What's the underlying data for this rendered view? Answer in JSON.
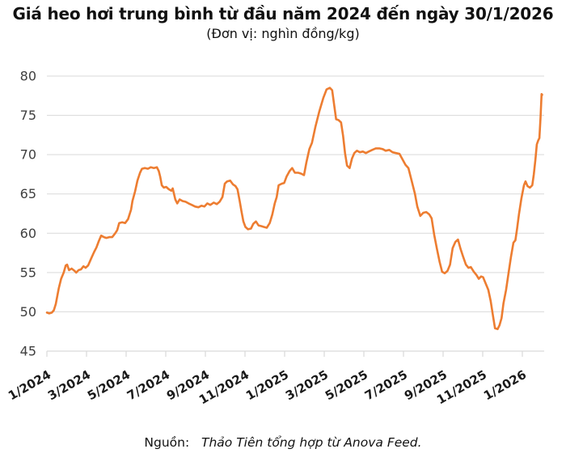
{
  "header": {
    "title": "Giá heo hơi trung bình từ đầu năm 2024 đến ngày 30/1/2026",
    "subtitle": "(Đơn vị: nghìn đồng/kg)"
  },
  "footer": {
    "source_label": "Nguồn:",
    "source_text": "Thảo Tiên tổng hợp từ Anova Feed."
  },
  "chart_data": {
    "type": "line",
    "title": "Giá heo hơi trung bình từ đầu năm 2024 đến ngày 30/1/2026",
    "unit": "nghìn đồng/kg",
    "grid": "horizontal",
    "legend": "none",
    "line_color": "#ED7D31",
    "grid_color": "#D9D9D9",
    "axis_color": "#D9D9D9",
    "ytick_color": "#3F3F3F",
    "xtick_color": "#1A1A1A",
    "ylim": [
      45,
      80
    ],
    "y_ticks": [
      45,
      50,
      55,
      60,
      65,
      70,
      75,
      80
    ],
    "x_tick_labels": [
      "1/2024",
      "3/2024",
      "5/2024",
      "7/2024",
      "9/2024",
      "11/2024",
      "1/2025",
      "3/2025",
      "5/2025",
      "7/2025",
      "9/2025",
      "11/2025",
      "1/2026"
    ],
    "x_tick_month_positions": [
      0,
      2,
      4,
      6,
      8,
      10,
      12,
      14,
      16,
      18,
      20,
      22,
      24
    ],
    "xlim_months": [
      0,
      25.1
    ],
    "series": [
      {
        "name": "Giá heo hơi trung bình (nghìn đồng/kg)",
        "x_unit": "months since 1/2024",
        "points": [
          [
            0.0,
            49.9
          ],
          [
            0.12,
            49.8
          ],
          [
            0.25,
            49.9
          ],
          [
            0.35,
            50.2
          ],
          [
            0.45,
            51.0
          ],
          [
            0.6,
            53.0
          ],
          [
            0.72,
            54.2
          ],
          [
            0.85,
            55.0
          ],
          [
            0.95,
            55.9
          ],
          [
            1.02,
            56.0
          ],
          [
            1.12,
            55.3
          ],
          [
            1.25,
            55.5
          ],
          [
            1.4,
            55.2
          ],
          [
            1.48,
            55.0
          ],
          [
            1.6,
            55.3
          ],
          [
            1.72,
            55.4
          ],
          [
            1.85,
            55.8
          ],
          [
            1.95,
            55.6
          ],
          [
            2.08,
            55.9
          ],
          [
            2.22,
            56.7
          ],
          [
            2.38,
            57.6
          ],
          [
            2.5,
            58.2
          ],
          [
            2.62,
            59.0
          ],
          [
            2.74,
            59.7
          ],
          [
            2.88,
            59.5
          ],
          [
            3.0,
            59.4
          ],
          [
            3.15,
            59.5
          ],
          [
            3.3,
            59.5
          ],
          [
            3.45,
            60.0
          ],
          [
            3.55,
            60.4
          ],
          [
            3.65,
            61.3
          ],
          [
            3.8,
            61.4
          ],
          [
            3.95,
            61.3
          ],
          [
            4.1,
            61.8
          ],
          [
            4.25,
            63.0
          ],
          [
            4.32,
            64.1
          ],
          [
            4.45,
            65.3
          ],
          [
            4.57,
            66.7
          ],
          [
            4.7,
            67.7
          ],
          [
            4.8,
            68.2
          ],
          [
            4.95,
            68.3
          ],
          [
            5.1,
            68.2
          ],
          [
            5.25,
            68.4
          ],
          [
            5.4,
            68.3
          ],
          [
            5.55,
            68.4
          ],
          [
            5.65,
            67.9
          ],
          [
            5.72,
            67.2
          ],
          [
            5.8,
            66.1
          ],
          [
            5.9,
            65.8
          ],
          [
            6.02,
            65.9
          ],
          [
            6.15,
            65.6
          ],
          [
            6.28,
            65.4
          ],
          [
            6.35,
            65.7
          ],
          [
            6.48,
            64.3
          ],
          [
            6.58,
            63.8
          ],
          [
            6.7,
            64.3
          ],
          [
            6.85,
            64.1
          ],
          [
            7.0,
            64.0
          ],
          [
            7.15,
            63.8
          ],
          [
            7.32,
            63.6
          ],
          [
            7.48,
            63.4
          ],
          [
            7.65,
            63.3
          ],
          [
            7.8,
            63.5
          ],
          [
            7.95,
            63.4
          ],
          [
            8.1,
            63.8
          ],
          [
            8.25,
            63.6
          ],
          [
            8.42,
            63.9
          ],
          [
            8.58,
            63.7
          ],
          [
            8.72,
            64.0
          ],
          [
            8.86,
            64.6
          ],
          [
            8.98,
            66.3
          ],
          [
            9.1,
            66.6
          ],
          [
            9.25,
            66.7
          ],
          [
            9.4,
            66.2
          ],
          [
            9.52,
            66.0
          ],
          [
            9.62,
            65.6
          ],
          [
            9.74,
            64.0
          ],
          [
            9.83,
            62.7
          ],
          [
            9.92,
            61.5
          ],
          [
            10.02,
            60.8
          ],
          [
            10.15,
            60.5
          ],
          [
            10.3,
            60.6
          ],
          [
            10.42,
            61.2
          ],
          [
            10.55,
            61.5
          ],
          [
            10.68,
            61.0
          ],
          [
            10.82,
            60.9
          ],
          [
            10.95,
            60.8
          ],
          [
            11.1,
            60.7
          ],
          [
            11.25,
            61.3
          ],
          [
            11.38,
            62.4
          ],
          [
            11.5,
            63.8
          ],
          [
            11.6,
            64.6
          ],
          [
            11.7,
            66.1
          ],
          [
            11.85,
            66.3
          ],
          [
            11.98,
            66.4
          ],
          [
            12.1,
            67.2
          ],
          [
            12.25,
            67.9
          ],
          [
            12.38,
            68.3
          ],
          [
            12.52,
            67.7
          ],
          [
            12.68,
            67.7
          ],
          [
            12.82,
            67.6
          ],
          [
            12.98,
            67.4
          ],
          [
            13.1,
            69.0
          ],
          [
            13.25,
            70.7
          ],
          [
            13.38,
            71.5
          ],
          [
            13.55,
            73.5
          ],
          [
            13.75,
            75.5
          ],
          [
            13.95,
            77.2
          ],
          [
            14.12,
            78.3
          ],
          [
            14.28,
            78.5
          ],
          [
            14.4,
            78.2
          ],
          [
            14.5,
            76.3
          ],
          [
            14.6,
            74.5
          ],
          [
            14.72,
            74.4
          ],
          [
            14.85,
            74.1
          ],
          [
            14.95,
            72.4
          ],
          [
            15.05,
            70.2
          ],
          [
            15.15,
            68.6
          ],
          [
            15.28,
            68.3
          ],
          [
            15.4,
            69.5
          ],
          [
            15.52,
            70.2
          ],
          [
            15.65,
            70.5
          ],
          [
            15.8,
            70.3
          ],
          [
            15.95,
            70.4
          ],
          [
            16.1,
            70.2
          ],
          [
            16.25,
            70.4
          ],
          [
            16.42,
            70.6
          ],
          [
            16.6,
            70.8
          ],
          [
            16.78,
            70.8
          ],
          [
            16.95,
            70.7
          ],
          [
            17.1,
            70.5
          ],
          [
            17.28,
            70.6
          ],
          [
            17.45,
            70.3
          ],
          [
            17.62,
            70.2
          ],
          [
            17.8,
            70.1
          ],
          [
            17.95,
            69.4
          ],
          [
            18.1,
            68.7
          ],
          [
            18.25,
            68.3
          ],
          [
            18.42,
            66.6
          ],
          [
            18.58,
            65.0
          ],
          [
            18.7,
            63.4
          ],
          [
            18.85,
            62.2
          ],
          [
            19.0,
            62.6
          ],
          [
            19.15,
            62.7
          ],
          [
            19.3,
            62.4
          ],
          [
            19.42,
            61.9
          ],
          [
            19.55,
            59.8
          ],
          [
            19.68,
            58.1
          ],
          [
            19.82,
            56.4
          ],
          [
            19.95,
            55.1
          ],
          [
            20.08,
            54.9
          ],
          [
            20.22,
            55.2
          ],
          [
            20.35,
            56.0
          ],
          [
            20.48,
            58.1
          ],
          [
            20.62,
            58.9
          ],
          [
            20.75,
            59.2
          ],
          [
            20.88,
            58.0
          ],
          [
            21.0,
            57.1
          ],
          [
            21.15,
            56.0
          ],
          [
            21.28,
            55.6
          ],
          [
            21.4,
            55.7
          ],
          [
            21.55,
            55.1
          ],
          [
            21.68,
            54.7
          ],
          [
            21.8,
            54.2
          ],
          [
            21.92,
            54.5
          ],
          [
            22.02,
            54.4
          ],
          [
            22.15,
            53.6
          ],
          [
            22.28,
            52.8
          ],
          [
            22.4,
            51.4
          ],
          [
            22.52,
            49.5
          ],
          [
            22.62,
            47.9
          ],
          [
            22.75,
            47.8
          ],
          [
            22.85,
            48.3
          ],
          [
            22.95,
            49.2
          ],
          [
            23.05,
            51.1
          ],
          [
            23.18,
            52.8
          ],
          [
            23.3,
            54.9
          ],
          [
            23.42,
            56.9
          ],
          [
            23.55,
            58.8
          ],
          [
            23.65,
            59.1
          ],
          [
            23.73,
            60.5
          ],
          [
            23.83,
            62.4
          ],
          [
            23.95,
            64.4
          ],
          [
            24.08,
            66.1
          ],
          [
            24.16,
            66.6
          ],
          [
            24.26,
            66.0
          ],
          [
            24.38,
            65.8
          ],
          [
            24.5,
            66.1
          ],
          [
            24.58,
            67.5
          ],
          [
            24.66,
            69.4
          ],
          [
            24.73,
            71.3
          ],
          [
            24.8,
            71.8
          ],
          [
            24.86,
            72.1
          ],
          [
            24.92,
            74.7
          ],
          [
            24.97,
            77.7
          ],
          [
            25.0,
            77.6
          ]
        ]
      }
    ]
  }
}
